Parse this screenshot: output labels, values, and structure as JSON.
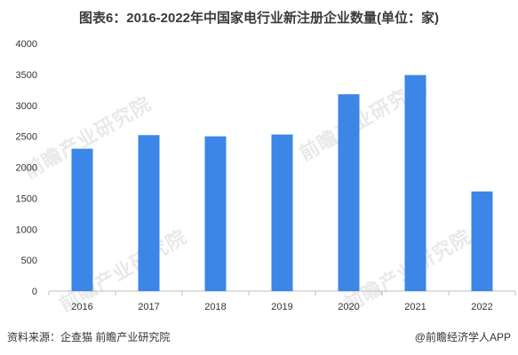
{
  "title": "图表6：2016-2022年中国家电行业新注册企业数量(单位：家)",
  "source": "资料来源：企查猫 前瞻产业研究院",
  "credit": "@前瞻经济学人APP",
  "watermark": "前瞻产业研究院",
  "colors": {
    "bar": "#3b86e6",
    "axis": "#bfbfbf",
    "text": "#333333"
  },
  "chart_data": {
    "type": "bar",
    "categories": [
      "2016",
      "2017",
      "2018",
      "2019",
      "2020",
      "2021",
      "2022"
    ],
    "values": [
      2300,
      2520,
      2500,
      2530,
      3180,
      3490,
      1610
    ],
    "ylim": [
      0,
      4000
    ],
    "yticks": [
      0,
      500,
      1000,
      1500,
      2000,
      2500,
      3000,
      3500,
      4000
    ],
    "grid": false
  }
}
